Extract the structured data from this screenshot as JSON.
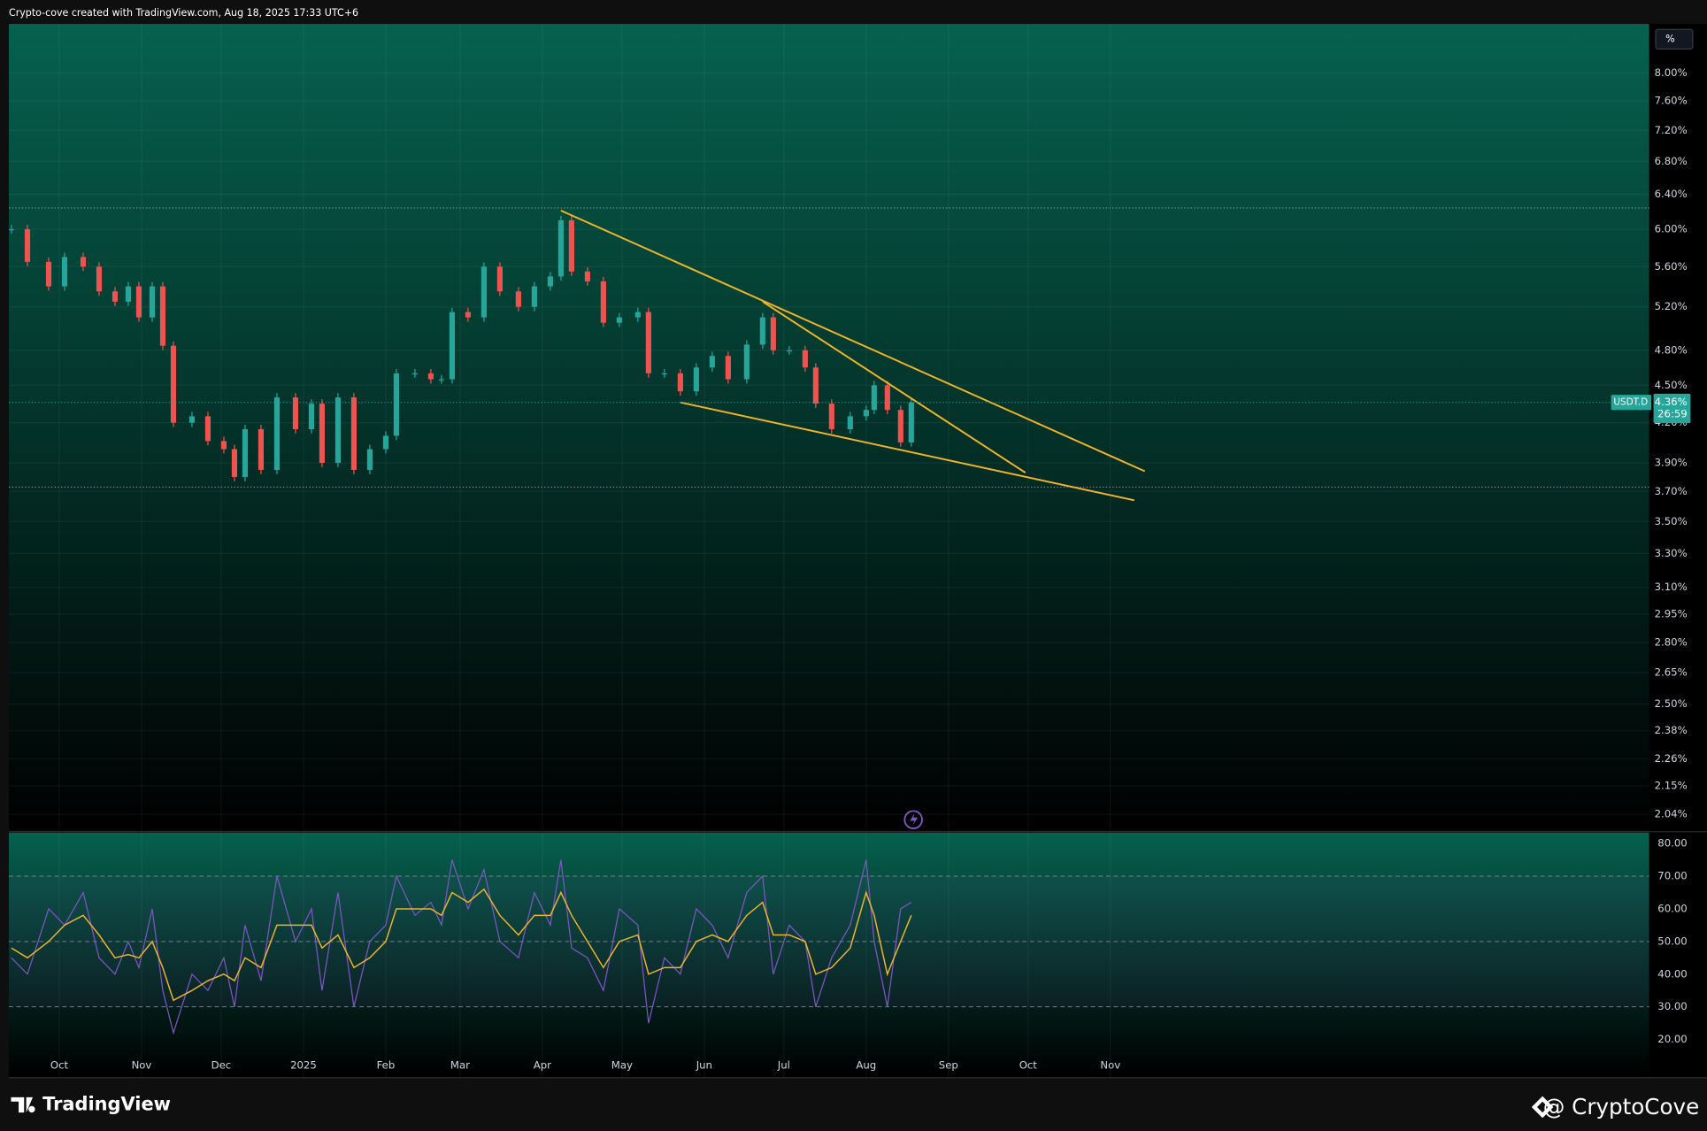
{
  "header": {
    "title": "Crypto-cove created with TradingView.com, Aug 18, 2025 17:33 UTC+6",
    "scale_button": "%"
  },
  "footer": {
    "brand": "TradingView",
    "watermark": "@ CryptoCove"
  },
  "chart_data": [
    {
      "type": "candlestick",
      "x": [
        -18,
        -12,
        -4,
        2,
        9,
        15,
        21,
        26,
        30,
        35,
        39,
        43,
        50,
        56,
        62,
        66,
        70,
        76,
        82,
        89,
        95,
        99,
        105,
        111,
        117,
        123,
        127,
        134,
        140,
        144,
        148,
        154,
        160,
        166,
        173,
        179,
        185,
        189,
        193,
        199,
        205,
        211,
        218,
        222,
        228,
        234,
        240,
        246,
        252,
        259,
        265,
        269,
        275,
        281,
        285,
        291,
        298,
        304,
        307,
        312,
        317,
        321
      ],
      "values": [
        6.0,
        5.65,
        5.4,
        5.7,
        5.6,
        5.35,
        5.25,
        5.4,
        5.1,
        5.4,
        4.84,
        4.2,
        4.25,
        4.06,
        4.0,
        3.8,
        4.15,
        3.85,
        4.4,
        4.15,
        4.35,
        3.9,
        4.4,
        3.85,
        4.0,
        4.1,
        4.6,
        4.6,
        4.55,
        4.55,
        5.15,
        5.1,
        5.6,
        5.35,
        5.2,
        5.4,
        5.5,
        6.1,
        5.55,
        5.45,
        5.05,
        5.1,
        5.15,
        4.6,
        4.6,
        4.45,
        4.65,
        4.75,
        4.55,
        4.85,
        5.1,
        4.8,
        4.8,
        4.65,
        4.35,
        4.15,
        4.25,
        4.3,
        4.5,
        4.3,
        4.05,
        4.36
      ],
      "up_color": "#26a69a",
      "down_color": "#ef5350",
      "xlim": [
        -19,
        599
      ],
      "xticks": [
        {
          "value": 0,
          "label": "Oct"
        },
        {
          "value": 31,
          "label": "Nov"
        },
        {
          "value": 61,
          "label": "Dec"
        },
        {
          "value": 92,
          "label": "2025"
        },
        {
          "value": 123,
          "label": "Feb"
        },
        {
          "value": 151,
          "label": "Mar"
        },
        {
          "value": 182,
          "label": "Apr"
        },
        {
          "value": 212,
          "label": "May"
        },
        {
          "value": 243,
          "label": "Jun"
        },
        {
          "value": 273,
          "label": "Jul"
        },
        {
          "value": 304,
          "label": "Aug"
        },
        {
          "value": 335,
          "label": "Sep"
        },
        {
          "value": 365,
          "label": "Oct"
        },
        {
          "value": 396,
          "label": "Nov"
        }
      ],
      "ylim": [
        1.98,
        8.76
      ],
      "log_scale": true,
      "grid": true,
      "yticks": [
        {
          "value": 8,
          "label": "8.00%"
        },
        {
          "value": 7.6,
          "label": "7.60%"
        },
        {
          "value": 7.2,
          "label": "7.20%"
        },
        {
          "value": 6.8,
          "label": "6.80%"
        },
        {
          "value": 6.4,
          "label": "6.40%"
        },
        {
          "value": 6,
          "label": "6.00%"
        },
        {
          "value": 5.6,
          "label": "5.60%"
        },
        {
          "value": 5.2,
          "label": "5.20%"
        },
        {
          "value": 4.8,
          "label": "4.80%"
        },
        {
          "value": 4.5,
          "label": "4.50%"
        },
        {
          "value": 4.2,
          "label": "4.20%"
        },
        {
          "value": 3.9,
          "label": "3.90%"
        },
        {
          "value": 3.7,
          "label": "3.70%"
        },
        {
          "value": 3.5,
          "label": "3.50%"
        },
        {
          "value": 3.3,
          "label": "3.30%"
        },
        {
          "value": 3.1,
          "label": "3.10%"
        },
        {
          "value": 2.95,
          "label": "2.95%"
        },
        {
          "value": 2.8,
          "label": "2.80%"
        },
        {
          "value": 2.65,
          "label": "2.65%"
        },
        {
          "value": 2.5,
          "label": "2.50%"
        },
        {
          "value": 2.38,
          "label": "2.38%"
        },
        {
          "value": 2.26,
          "label": "2.26%"
        },
        {
          "value": 2.15,
          "label": "2.15%"
        },
        {
          "value": 2.04,
          "label": "2.04%"
        }
      ],
      "trendline_color": "#f0b429",
      "trendlines": [
        {
          "x": [
            189,
            409
          ],
          "y": [
            6.21,
            3.84
          ]
        },
        {
          "x": [
            265,
            364
          ],
          "y": [
            5.25,
            3.83
          ]
        },
        {
          "x": [
            234,
            405
          ],
          "y": [
            4.36,
            3.64
          ]
        }
      ],
      "hlines": [
        6.24,
        3.73
      ],
      "last_price": {
        "symbol": "USDT.D",
        "value": 4.36,
        "label": "4.36%",
        "countdown": "26:59"
      }
    },
    {
      "type": "line",
      "ylim": [
        8.3,
        83.3
      ],
      "yticks": [
        {
          "value": 80,
          "label": "80.00"
        },
        {
          "value": 70,
          "label": "70.00"
        },
        {
          "value": 60,
          "label": "60.00"
        },
        {
          "value": 50,
          "label": "50.00"
        },
        {
          "value": 40,
          "label": "40.00"
        },
        {
          "value": 30,
          "label": "30.00"
        },
        {
          "value": 20,
          "label": "20.00"
        }
      ],
      "bands": [
        70,
        50,
        30
      ],
      "series": [
        {
          "color": "#7e57c2",
          "values": [
            45,
            40,
            60,
            55,
            65,
            45,
            40,
            50,
            42,
            60,
            35,
            22,
            40,
            35,
            45,
            30,
            55,
            38,
            70,
            50,
            60,
            35,
            65,
            30,
            50,
            55,
            70,
            58,
            62,
            55,
            75,
            60,
            72,
            50,
            45,
            65,
            55,
            75,
            48,
            45,
            35,
            60,
            55,
            25,
            45,
            40,
            60,
            55,
            45,
            65,
            70,
            40,
            55,
            50,
            30,
            45,
            55,
            75,
            50,
            30,
            60,
            62
          ]
        },
        {
          "color": "#f0b429",
          "values": [
            48,
            45,
            50,
            55,
            58,
            52,
            45,
            46,
            45,
            50,
            42,
            32,
            35,
            38,
            40,
            38,
            45,
            42,
            55,
            55,
            55,
            48,
            52,
            42,
            45,
            50,
            60,
            60,
            60,
            58,
            65,
            62,
            66,
            58,
            52,
            58,
            58,
            65,
            58,
            50,
            42,
            50,
            52,
            40,
            42,
            42,
            50,
            52,
            50,
            58,
            62,
            52,
            52,
            50,
            40,
            42,
            48,
            65,
            58,
            40,
            50,
            58
          ]
        }
      ]
    }
  ]
}
